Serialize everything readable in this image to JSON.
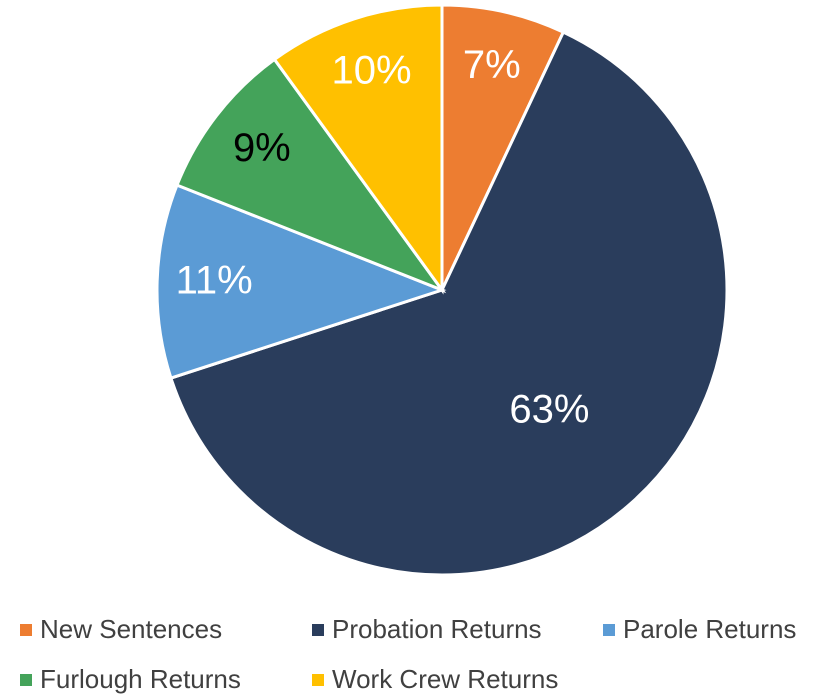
{
  "chart_data": {
    "type": "pie",
    "categories": [
      "New Sentences",
      "Probation Returns",
      "Parole Returns",
      "Furlough Returns",
      "Work Crew Returns"
    ],
    "values": [
      7,
      63,
      11,
      9,
      10
    ],
    "value_labels": [
      "7%",
      "63%",
      "11%",
      "9%",
      "10%"
    ],
    "colors": [
      "#ed7d31",
      "#2a3d5c",
      "#5b9bd5",
      "#44a35a",
      "#ffc000"
    ],
    "label_colors": [
      "#ffffff",
      "#ffffff",
      "#ffffff",
      "#000000",
      "#ffffff"
    ],
    "legend": "bottom"
  }
}
